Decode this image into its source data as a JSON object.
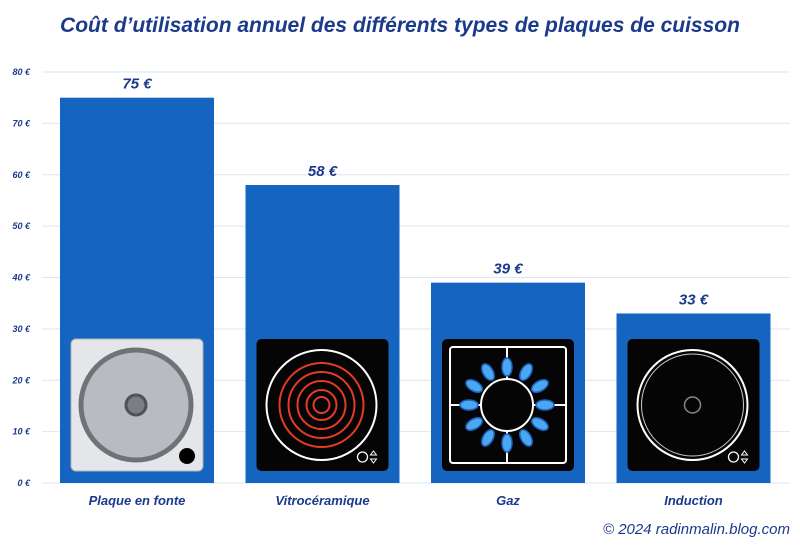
{
  "title": "Coût d’utilisation annuel des différents types de plaques de cuisson",
  "footer": "© 2024 radinmalin.blog.com",
  "colors": {
    "bar": "#1565c0",
    "text": "#1b3a8c",
    "grid": "#dbe6f3"
  },
  "chart_data": {
    "type": "bar",
    "categories": [
      "Plaque en fonte",
      "Vitrocéramique",
      "Gaz",
      "Induction"
    ],
    "values": [
      75,
      58,
      39,
      33
    ],
    "value_labels": [
      "75 €",
      "58 €",
      "39 €",
      "33 €"
    ],
    "y_ticks": [
      "0 €",
      "10 €",
      "20 €",
      "30 €",
      "40 €",
      "50 €",
      "60 €",
      "70 €",
      "80 €"
    ],
    "ylim": [
      0,
      80
    ],
    "grid": true,
    "icons": [
      "cast-iron-hob-icon",
      "ceramic-hob-icon",
      "gas-hob-icon",
      "induction-hob-icon"
    ]
  }
}
